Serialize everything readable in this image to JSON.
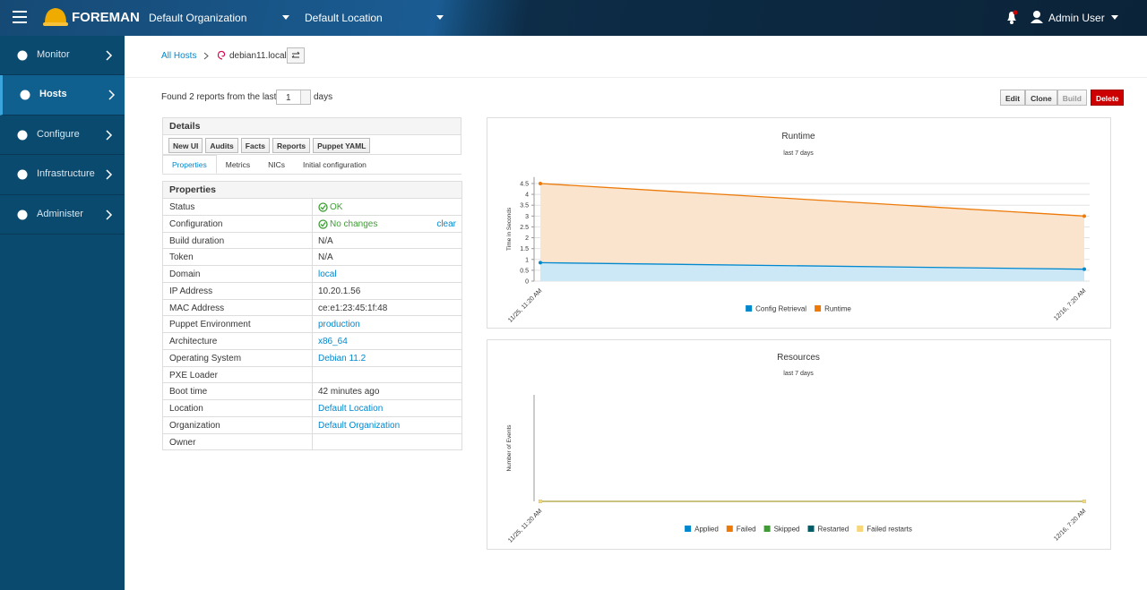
{
  "header": {
    "brand": "FOREMAN",
    "organization": "Default Organization",
    "location": "Default Location",
    "user": "Admin User"
  },
  "sidebar": {
    "items": [
      "Monitor",
      "Hosts",
      "Configure",
      "Infrastructure",
      "Administer"
    ],
    "active": 1
  },
  "breadcrumb": {
    "parent": "All Hosts",
    "current": "debian11.local"
  },
  "reports": {
    "prefix": "Found 2 reports from the last",
    "days": "1",
    "suffix": "days"
  },
  "actions": [
    {
      "label": "Edit"
    },
    {
      "label": "Clone"
    },
    {
      "label": "Build",
      "disabled": true
    },
    {
      "label": "Delete",
      "style": "danger"
    }
  ],
  "details": {
    "title": "Details",
    "buttons": [
      "New UI",
      "Audits",
      "Facts",
      "Reports",
      "Puppet YAML"
    ],
    "tabs": [
      "Properties",
      "Metrics",
      "NICs",
      "Initial configuration"
    ],
    "active_tab": 0
  },
  "properties": {
    "title": "Properties",
    "rows": [
      {
        "label": "Status",
        "value": "OK",
        "status": "ok"
      },
      {
        "label": "Configuration",
        "value": "No changes",
        "status": "ok",
        "action": "clear"
      },
      {
        "label": "Build duration",
        "value": "N/A"
      },
      {
        "label": "Token",
        "value": "N/A"
      },
      {
        "label": "Domain",
        "value": "local",
        "link": true
      },
      {
        "label": "IP Address",
        "value": "10.20.1.56"
      },
      {
        "label": "MAC Address",
        "value": "ce:e1:23:45:1f:48"
      },
      {
        "label": "Puppet Environment",
        "value": "production",
        "link": true
      },
      {
        "label": "Architecture",
        "value": "x86_64",
        "link": true
      },
      {
        "label": "Operating System",
        "value": "Debian 11.2",
        "link": true
      },
      {
        "label": "PXE Loader"
      },
      {
        "label": "Boot time",
        "value": "42 minutes ago"
      },
      {
        "label": "Location",
        "value": "Default Location",
        "link": true
      },
      {
        "label": "Organization",
        "value": "Default Organization",
        "link": true
      },
      {
        "label": "Owner"
      }
    ]
  },
  "chart_data": [
    {
      "type": "area",
      "title": "Runtime",
      "subtitle": "last 7 days",
      "y_label": "Time in Seconds",
      "categories": [
        "11/25, 11:20 AM",
        "12/16, 7:20 AM"
      ],
      "series": [
        {
          "name": "Config Retrieval",
          "color": "#0088ce",
          "values": [
            0.85,
            0.55
          ]
        },
        {
          "name": "Runtime",
          "color": "#ec7a08",
          "values": [
            4.5,
            3.0
          ]
        }
      ],
      "ylim": [
        0,
        4.8
      ],
      "yticks": [
        0,
        0.5,
        1,
        1.5,
        2,
        2.5,
        3,
        3.5,
        4,
        4.5
      ],
      "grid": true,
      "legend": "bottom"
    },
    {
      "type": "line",
      "title": "Resources",
      "subtitle": "last 7 days",
      "y_label": "Number of Events",
      "categories": [
        "11/25, 11:20 AM",
        "12/16, 7:20 AM"
      ],
      "series": [
        {
          "name": "Applied",
          "color": "#0088ce",
          "values": [
            0,
            0
          ]
        },
        {
          "name": "Failed",
          "color": "#ec7a08",
          "values": [
            0,
            0
          ]
        },
        {
          "name": "Skipped",
          "color": "#3f9c35",
          "values": [
            0,
            0
          ]
        },
        {
          "name": "Restarted",
          "color": "#005c66",
          "values": [
            0,
            0
          ]
        },
        {
          "name": "Failed restarts",
          "color": "#f9d67a",
          "values": [
            0,
            0
          ]
        }
      ],
      "ylim": [
        0,
        1
      ],
      "grid": false,
      "legend": "bottom"
    }
  ]
}
